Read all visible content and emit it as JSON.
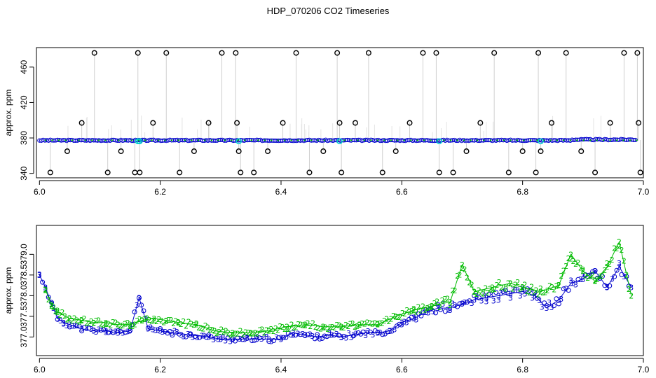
{
  "title": "HDP_070206  CO2 Timeseries",
  "colors": {
    "raw_flags": "#000000",
    "drops": "#a0a0a0",
    "series_3": "#0000cc",
    "series_2": "#00bb00",
    "series_cyan": "#00cccc"
  },
  "chart_data": [
    {
      "type": "scatter",
      "name": "top-panel",
      "xlabel": "",
      "ylabel": "approx. ppm",
      "xlim": [
        5.995,
        7.0
      ],
      "ylim": [
        335,
        482
      ],
      "xticks": [
        "6.0",
        "6.2",
        "6.4",
        "6.6",
        "6.8",
        "7.0"
      ],
      "yticks": [
        "340",
        "380",
        "420",
        "460"
      ],
      "baseline": 377.3,
      "blue_gap": [
        0.163,
        0.168
      ],
      "cyan_points": [
        6.163,
        6.166,
        6.33,
        6.497,
        6.662,
        6.83
      ],
      "flagged_points": {
        "x": [
          6.018,
          6.046,
          6.07,
          6.091,
          6.113,
          6.135,
          6.158,
          6.163,
          6.166,
          6.188,
          6.21,
          6.232,
          6.256,
          6.28,
          6.302,
          6.325,
          6.327,
          6.33,
          6.333,
          6.355,
          6.378,
          6.403,
          6.425,
          6.447,
          6.47,
          6.493,
          6.497,
          6.5,
          6.523,
          6.545,
          6.568,
          6.59,
          6.613,
          6.635,
          6.657,
          6.662,
          6.685,
          6.707,
          6.73,
          6.753,
          6.777,
          6.8,
          6.822,
          6.826,
          6.83,
          6.848,
          6.872,
          6.897,
          6.92,
          6.945,
          6.968,
          6.99,
          6.992,
          6.995
        ],
        "y": [
          341,
          365,
          397,
          476,
          341,
          365,
          341,
          476,
          341,
          397,
          476,
          341,
          365,
          397,
          476,
          476,
          397,
          365,
          341,
          341,
          365,
          397,
          476,
          341,
          365,
          476,
          397,
          341,
          397,
          476,
          341,
          365,
          397,
          476,
          476,
          341,
          341,
          365,
          397,
          476,
          341,
          365,
          341,
          476,
          365,
          397,
          476,
          365,
          341,
          397,
          476,
          476,
          397,
          341
        ]
      }
    },
    {
      "type": "scatter",
      "name": "bottom-panel",
      "xlabel": "",
      "ylabel": "approx. ppm",
      "xlim": [
        5.995,
        7.0
      ],
      "ylim": [
        376.55,
        379.7
      ],
      "xticks": [
        "6.0",
        "6.2",
        "6.4",
        "6.6",
        "6.8",
        "7.0"
      ],
      "yticks": [
        "377.0",
        "377.5",
        "378.0",
        "378.5",
        "379.0"
      ],
      "series": [
        {
          "name": "3",
          "marker": "3",
          "x": [
            6.0,
            6.01,
            6.02,
            6.03,
            6.04,
            6.05,
            6.07,
            6.09,
            6.11,
            6.13,
            6.15,
            6.165,
            6.18,
            6.2,
            6.22,
            6.25,
            6.28,
            6.3,
            6.32,
            6.34,
            6.36,
            6.38,
            6.4,
            6.42,
            6.44,
            6.46,
            6.48,
            6.5,
            6.52,
            6.54,
            6.56,
            6.58,
            6.6,
            6.62,
            6.64,
            6.66,
            6.68,
            6.7,
            6.72,
            6.74,
            6.76,
            6.78,
            6.8,
            6.82,
            6.84,
            6.86,
            6.88,
            6.9,
            6.92,
            6.94,
            6.96,
            6.98
          ],
          "y": [
            378.5,
            378.2,
            377.8,
            377.45,
            377.35,
            377.3,
            377.2,
            377.15,
            377.15,
            377.1,
            377.15,
            377.95,
            377.2,
            377.15,
            377.1,
            377.05,
            377.0,
            376.95,
            376.95,
            376.95,
            376.95,
            376.95,
            376.95,
            377.1,
            377.05,
            377.0,
            377.05,
            377.0,
            377.05,
            377.1,
            377.1,
            377.15,
            377.35,
            377.45,
            377.6,
            377.7,
            377.7,
            377.8,
            377.9,
            377.95,
            378.0,
            378.05,
            378.1,
            378.0,
            377.7,
            377.9,
            378.3,
            378.4,
            378.6,
            378.2,
            378.7,
            378.2
          ]
        },
        {
          "name": "2",
          "marker": "2",
          "x": [
            6.01,
            6.02,
            6.03,
            6.05,
            6.07,
            6.09,
            6.11,
            6.13,
            6.15,
            6.17,
            6.19,
            6.21,
            6.23,
            6.26,
            6.29,
            6.32,
            6.35,
            6.38,
            6.41,
            6.44,
            6.47,
            6.5,
            6.53,
            6.56,
            6.59,
            6.62,
            6.65,
            6.68,
            6.7,
            6.72,
            6.75,
            6.78,
            6.8,
            6.83,
            6.86,
            6.88,
            6.9,
            6.92,
            6.94,
            6.96,
            6.98
          ],
          "y": [
            378.15,
            377.75,
            377.6,
            377.45,
            377.4,
            377.35,
            377.35,
            377.3,
            377.3,
            377.4,
            377.45,
            377.4,
            377.35,
            377.3,
            377.15,
            377.1,
            377.1,
            377.15,
            377.25,
            377.3,
            377.25,
            377.25,
            377.3,
            377.3,
            377.5,
            377.65,
            377.75,
            377.85,
            378.75,
            378.1,
            378.2,
            378.3,
            378.2,
            378.1,
            378.25,
            379.0,
            378.6,
            378.35,
            378.7,
            379.3,
            378.0
          ]
        }
      ]
    }
  ]
}
